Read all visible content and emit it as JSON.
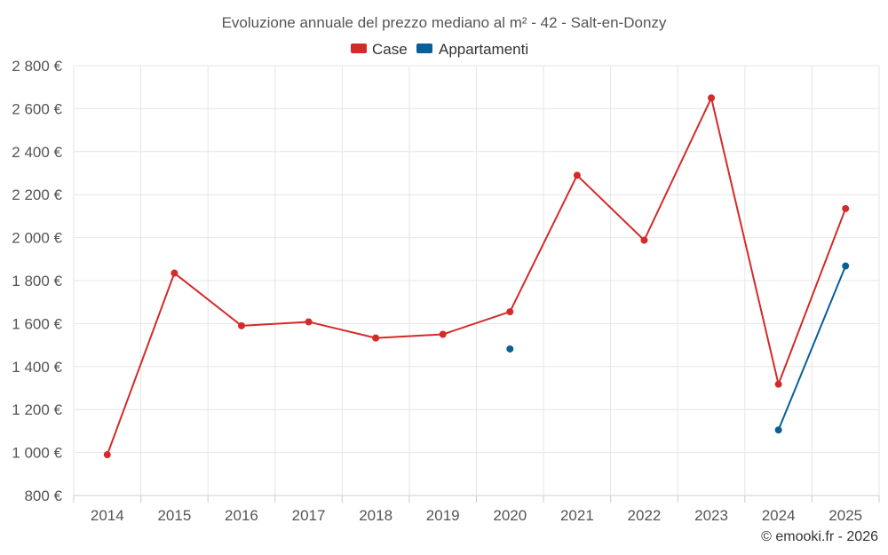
{
  "chart_data": {
    "type": "line",
    "title": "Evoluzione annuale del prezzo mediano al m² - 42 - Salt-en-Donzy",
    "xlabel": "",
    "ylabel": "",
    "categories": [
      "2014",
      "2015",
      "2016",
      "2017",
      "2018",
      "2019",
      "2020",
      "2021",
      "2022",
      "2023",
      "2024",
      "2025"
    ],
    "ylim": [
      800,
      2800
    ],
    "yticks": [
      800,
      1000,
      1200,
      1400,
      1600,
      1800,
      2000,
      2200,
      2400,
      2600,
      2800
    ],
    "ytick_labels": [
      "800 €",
      "1 000 €",
      "1 200 €",
      "1 400 €",
      "1 600 €",
      "1 800 €",
      "2 000 €",
      "2 200 €",
      "2 400 €",
      "2 600 €",
      "2 800 €"
    ],
    "grid": true,
    "legend_position": "top-center",
    "series": [
      {
        "name": "Case",
        "color": "#d32a2a",
        "values": [
          990,
          1835,
          1590,
          1608,
          1533,
          1550,
          1655,
          2290,
          1988,
          2650,
          1318,
          2135
        ]
      },
      {
        "name": "Appartamenti",
        "color": "#0a5f96",
        "values": [
          null,
          null,
          null,
          null,
          null,
          null,
          1482,
          null,
          null,
          null,
          1105,
          1868
        ]
      }
    ]
  },
  "credit": "© emooki.fr - 2026"
}
